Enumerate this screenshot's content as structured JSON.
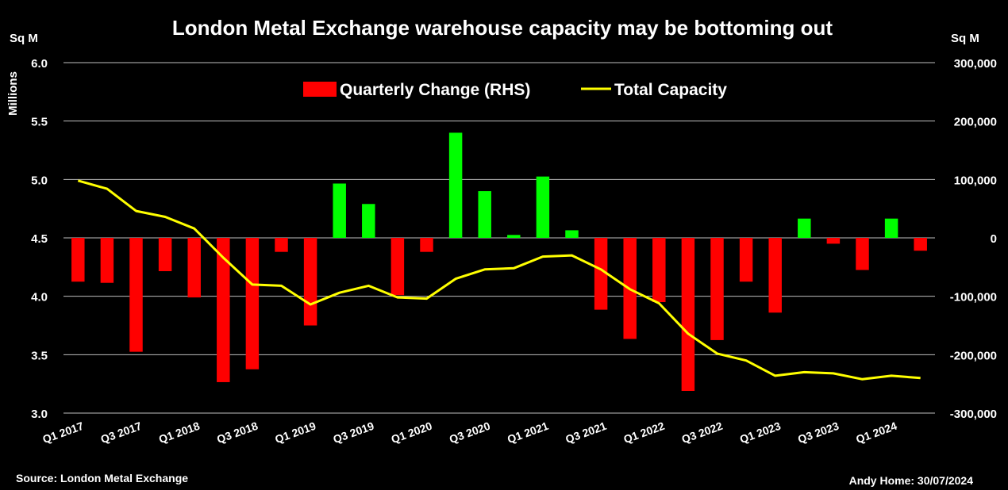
{
  "chart_data": {
    "type": "bar+line",
    "title": "London Metal Exchange warehouse capacity may be bottoming out",
    "left_axis": {
      "unit": "Sq M",
      "label": "Millions",
      "range": [
        3.0,
        6.0
      ],
      "ticks": [
        "6.0",
        "5.5",
        "5.0",
        "4.5",
        "4.0",
        "3.5",
        "3.0"
      ]
    },
    "right_axis": {
      "unit": "Sq M",
      "range": [
        -300000,
        300000
      ],
      "ticks": [
        "300,000",
        "200,000",
        "100,000",
        "0",
        "-100,000",
        "-200,000",
        "-300,000"
      ]
    },
    "x_tick_labels": [
      "Q1 2017",
      "Q3 2017",
      "Q1 2018",
      "Q3 2018",
      "Q1 2019",
      "Q3 2019",
      "Q1 2020",
      "Q3 2020",
      "Q1 2021",
      "Q3 2021",
      "Q1 2022",
      "Q3 2022",
      "Q1 2023",
      "Q3 2023",
      "Q1 2024"
    ],
    "categories": [
      "Q1 2017",
      "Q2 2017",
      "Q3 2017",
      "Q4 2017",
      "Q1 2018",
      "Q2 2018",
      "Q3 2018",
      "Q4 2018",
      "Q1 2019",
      "Q2 2019",
      "Q3 2019",
      "Q4 2019",
      "Q1 2020",
      "Q2 2020",
      "Q3 2020",
      "Q4 2020",
      "Q1 2021",
      "Q2 2021",
      "Q3 2021",
      "Q4 2021",
      "Q1 2022",
      "Q2 2022",
      "Q3 2022",
      "Q4 2022",
      "Q1 2023",
      "Q2 2023",
      "Q3 2023",
      "Q4 2023",
      "Q1 2024",
      "Q2 2024"
    ],
    "series": [
      {
        "name": "Quarterly Change (RHS)",
        "axis": "right",
        "kind": "bar",
        "positive_color": "#00ff00",
        "negative_color": "#ff0000",
        "values": [
          -75000,
          -77000,
          -195000,
          -57000,
          -102000,
          -247000,
          -225000,
          -24000,
          -150000,
          93000,
          58000,
          -98000,
          -24000,
          180000,
          80000,
          5000,
          105000,
          13000,
          -123000,
          -173000,
          -110000,
          -262000,
          -175000,
          -75000,
          -128000,
          33000,
          -10000,
          -55000,
          33000,
          -22000
        ]
      },
      {
        "name": "Total Capacity",
        "axis": "left",
        "kind": "line",
        "color": "#ffff00",
        "values": [
          4.99,
          4.92,
          4.73,
          4.68,
          4.58,
          4.33,
          4.1,
          4.09,
          3.93,
          4.03,
          4.09,
          3.99,
          3.98,
          4.15,
          4.23,
          4.24,
          4.34,
          4.35,
          4.23,
          4.06,
          3.94,
          3.68,
          3.51,
          3.45,
          3.32,
          3.35,
          3.34,
          3.29,
          3.32,
          3.3
        ]
      }
    ],
    "legend_position": "top-center",
    "grid": "horizontal",
    "source": "Source: London Metal Exchange",
    "credit": "Andy Home: 30/07/2024"
  }
}
